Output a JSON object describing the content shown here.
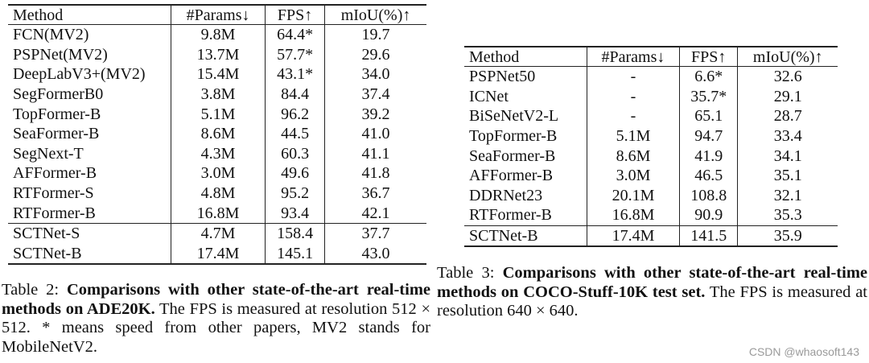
{
  "table2": {
    "headers": [
      "Method",
      "#Params↓",
      "FPS↑",
      "mIoU(%)↑"
    ],
    "rows": [
      [
        "FCN(MV2)",
        "9.8M",
        "64.4*",
        "19.7"
      ],
      [
        "PSPNet(MV2)",
        "13.7M",
        "57.7*",
        "29.6"
      ],
      [
        "DeepLabV3+(MV2)",
        "15.4M",
        "43.1*",
        "34.0"
      ],
      [
        "SegFormerB0",
        "3.8M",
        "84.4",
        "37.4"
      ],
      [
        "TopFormer-B",
        "5.1M",
        "96.2",
        "39.2"
      ],
      [
        "SeaFormer-B",
        "8.6M",
        "44.5",
        "41.0"
      ],
      [
        "SegNext-T",
        "4.3M",
        "60.3",
        "41.1"
      ],
      [
        "AFFormer-B",
        "3.0M",
        "49.6",
        "41.8"
      ],
      [
        "RTFormer-S",
        "4.8M",
        "95.2",
        "36.7"
      ],
      [
        "RTFormer-B",
        "16.8M",
        "93.4",
        "42.1"
      ],
      [
        "SCTNet-S",
        "4.7M",
        "158.4",
        "37.7"
      ],
      [
        "SCTNet-B",
        "17.4M",
        "145.1",
        "43.0"
      ]
    ],
    "caption": {
      "label": "Table 2:",
      "bold": "Comparisons with other state-of-the-art real-time methods on ADE20K.",
      "rest": "The FPS is measured at resolution 512 × 512. * means speed from other papers, MV2 stands for MobileNetV2."
    }
  },
  "table3": {
    "headers": [
      "Method",
      "#Params↓",
      "FPS↑",
      "mIoU(%)↑"
    ],
    "rows": [
      [
        "PSPNet50",
        "-",
        "6.6*",
        "32.6"
      ],
      [
        "ICNet",
        "-",
        "35.7*",
        "29.1"
      ],
      [
        "BiSeNetV2-L",
        "-",
        "65.1",
        "28.7"
      ],
      [
        "TopFormer-B",
        "5.1M",
        "94.7",
        "33.4"
      ],
      [
        "SeaFormer-B",
        "8.6M",
        "41.9",
        "34.1"
      ],
      [
        "AFFormer-B",
        "3.0M",
        "46.5",
        "35.1"
      ],
      [
        "DDRNet23",
        "20.1M",
        "108.8",
        "32.1"
      ],
      [
        "RTFormer-B",
        "16.8M",
        "90.9",
        "35.3"
      ],
      [
        "SCTNet-B",
        "17.4M",
        "141.5",
        "35.9"
      ]
    ],
    "caption": {
      "label": "Table 3:",
      "bold": "Comparisons with other state-of-the-art real-time methods on COCO-Stuff-10K test set.",
      "rest": "The FPS is measured at resolution 640 × 640."
    }
  },
  "watermark": "CSDN @whaosoft143"
}
